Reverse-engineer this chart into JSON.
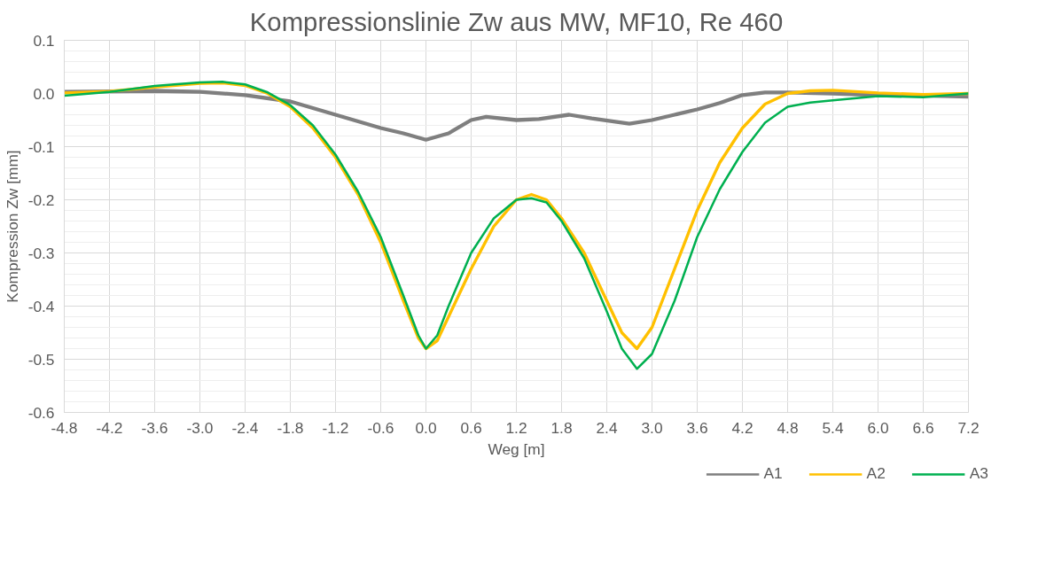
{
  "chart_data": {
    "type": "line",
    "title": "Kompressionslinie Zw aus MW, MF10, Re 460",
    "xlabel": "Weg [m]",
    "ylabel": "Kompression Zw [mm]",
    "xlim": [
      -4.8,
      7.2
    ],
    "xticks": [
      {
        "value": -4.8,
        "label": "-4.8"
      },
      {
        "value": -4.2,
        "label": "-4.2"
      },
      {
        "value": -3.6,
        "label": "-3.6"
      },
      {
        "value": -3.0,
        "label": "-3.0"
      },
      {
        "value": -2.4,
        "label": "-2.4"
      },
      {
        "value": -1.8,
        "label": "-1.8"
      },
      {
        "value": -1.2,
        "label": "-1.2"
      },
      {
        "value": -0.6,
        "label": "-0.6"
      },
      {
        "value": 0,
        "label": "0.0"
      },
      {
        "value": 0.6,
        "label": "0.6"
      },
      {
        "value": 1.2,
        "label": "1.2"
      },
      {
        "value": 1.8,
        "label": "1.8"
      },
      {
        "value": 2.4,
        "label": "2.4"
      },
      {
        "value": 3.0,
        "label": "3.0"
      },
      {
        "value": 3.6,
        "label": "3.6"
      },
      {
        "value": 4.2,
        "label": "4.2"
      },
      {
        "value": 4.8,
        "label": "4.8"
      },
      {
        "value": 5.4,
        "label": "5.4"
      },
      {
        "value": 6.0,
        "label": "6.0"
      },
      {
        "value": 6.6,
        "label": "6.6"
      },
      {
        "value": 7.2,
        "label": "7.2"
      }
    ],
    "ylim": [
      -0.6,
      0.1
    ],
    "yticks": [
      {
        "value": -0.6,
        "label": "-0.6"
      },
      {
        "value": -0.5,
        "label": "-0.5"
      },
      {
        "value": -0.4,
        "label": "-0.4"
      },
      {
        "value": -0.3,
        "label": "-0.3"
      },
      {
        "value": -0.2,
        "label": "-0.2"
      },
      {
        "value": -0.1,
        "label": "-0.1"
      },
      {
        "value": 0,
        "label": "0.0"
      },
      {
        "value": 0.1,
        "label": "0.1"
      }
    ],
    "grid": true,
    "legend": "bottom right",
    "marker": "none",
    "line_style": "solid",
    "series": [
      {
        "name": "A1",
        "color": "#7f7f7f",
        "x": [
          -4.8,
          -4.2,
          -3.6,
          -3.0,
          -2.4,
          -1.8,
          -1.2,
          -0.6,
          -0.3,
          0,
          0.3,
          0.6,
          0.8,
          1.2,
          1.5,
          1.9,
          2.2,
          2.7,
          3.0,
          3.3,
          3.6,
          3.9,
          4.2,
          4.5,
          4.8,
          5.4,
          6.0,
          6.6,
          7.2
        ],
        "values": [
          0.003,
          0.004,
          0.005,
          0.003,
          -0.003,
          -0.015,
          -0.04,
          -0.065,
          -0.075,
          -0.087,
          -0.075,
          -0.05,
          -0.044,
          -0.05,
          -0.048,
          -0.04,
          -0.047,
          -0.057,
          -0.05,
          -0.04,
          -0.03,
          -0.018,
          -0.003,
          0.002,
          0.002,
          0,
          -0.003,
          -0.004,
          -0.006
        ]
      },
      {
        "name": "A2",
        "color": "#ffc000",
        "x": [
          -4.8,
          -4.2,
          -3.6,
          -3.0,
          -2.7,
          -2.4,
          -2.1,
          -1.8,
          -1.5,
          -1.2,
          -0.9,
          -0.6,
          -0.3,
          -0.1,
          0,
          0.15,
          0.3,
          0.6,
          0.9,
          1.2,
          1.4,
          1.6,
          1.8,
          2.1,
          2.4,
          2.6,
          2.8,
          3.0,
          3.3,
          3.6,
          3.9,
          4.2,
          4.5,
          4.8,
          5.1,
          5.4,
          6.0,
          6.6,
          7.2
        ],
        "values": [
          0.001,
          0.004,
          0.012,
          0.019,
          0.02,
          0.015,
          0.0,
          -0.025,
          -0.065,
          -0.12,
          -0.19,
          -0.28,
          -0.39,
          -0.46,
          -0.48,
          -0.465,
          -0.42,
          -0.33,
          -0.25,
          -0.2,
          -0.19,
          -0.2,
          -0.235,
          -0.3,
          -0.39,
          -0.45,
          -0.48,
          -0.44,
          -0.33,
          -0.22,
          -0.13,
          -0.065,
          -0.02,
          0,
          0.005,
          0.006,
          0.001,
          -0.002,
          0
        ]
      },
      {
        "name": "A3",
        "color": "#00b050",
        "x": [
          -4.8,
          -4.2,
          -3.6,
          -3.0,
          -2.7,
          -2.4,
          -2.1,
          -1.8,
          -1.5,
          -1.2,
          -0.9,
          -0.6,
          -0.3,
          -0.1,
          0,
          0.15,
          0.3,
          0.6,
          0.9,
          1.2,
          1.4,
          1.6,
          1.8,
          2.1,
          2.4,
          2.6,
          2.8,
          3.0,
          3.3,
          3.6,
          3.9,
          4.2,
          4.5,
          4.8,
          5.1,
          5.4,
          6.0,
          6.6,
          7.2
        ],
        "values": [
          -0.004,
          0.003,
          0.014,
          0.021,
          0.022,
          0.017,
          0.002,
          -0.022,
          -0.06,
          -0.115,
          -0.185,
          -0.27,
          -0.38,
          -0.455,
          -0.48,
          -0.455,
          -0.4,
          -0.3,
          -0.235,
          -0.2,
          -0.197,
          -0.205,
          -0.24,
          -0.31,
          -0.41,
          -0.48,
          -0.518,
          -0.49,
          -0.39,
          -0.27,
          -0.18,
          -0.11,
          -0.055,
          -0.025,
          -0.017,
          -0.013,
          -0.005,
          -0.007,
          0
        ]
      }
    ]
  }
}
